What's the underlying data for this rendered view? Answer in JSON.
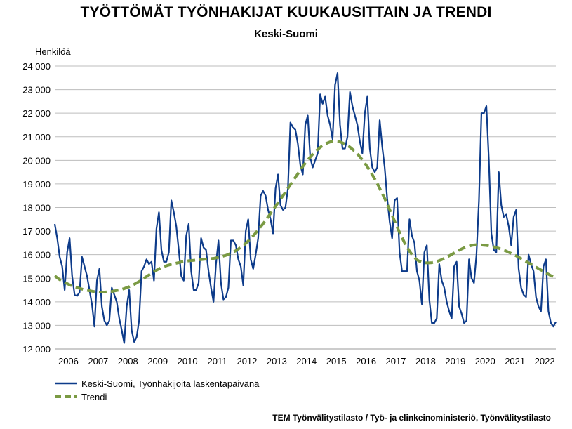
{
  "chart_data": {
    "type": "line",
    "title": "TYÖTTÖMÄT TYÖNHAKIJAT KUUKAUSITTAIN JA TRENDI",
    "subtitle": "Keski-Suomi",
    "ylabel": "Henkilöä",
    "ylim": [
      12000,
      24000
    ],
    "y_ticks": [
      "12 000",
      "13 000",
      "14 000",
      "15 000",
      "16 000",
      "17 000",
      "18 000",
      "19 000",
      "20 000",
      "21 000",
      "22 000",
      "23 000",
      "24 000"
    ],
    "y_tick_values": [
      12000,
      13000,
      14000,
      15000,
      16000,
      17000,
      18000,
      19000,
      20000,
      21000,
      22000,
      23000,
      24000
    ],
    "x_ticks": [
      "2006",
      "2007",
      "2008",
      "2009",
      "2010",
      "2011",
      "2012",
      "2013",
      "2014",
      "2015",
      "2016",
      "2017",
      "2018",
      "2019",
      "2020",
      "2021",
      "2022"
    ],
    "x_start": "2006-01",
    "x_end": "2022-06",
    "grid": true,
    "legend_position": "bottom-left",
    "source": "TEM Työnvälitystilasto / Työ- ja elinkeinoministeriö, Työnvälitystilasto",
    "colors": {
      "series": "#0d3b8a",
      "trend": "#7a9a43",
      "grid": "#bdbdbd"
    },
    "series": [
      {
        "name": "Keski-Suomi, Työnhakijoita laskentapäivänä",
        "style": "solid",
        "values": [
          17300,
          16700,
          15900,
          15500,
          14500,
          16100,
          16700,
          15100,
          14300,
          14250,
          14400,
          15900,
          15500,
          15100,
          14500,
          13900,
          12950,
          14900,
          15400,
          13800,
          13200,
          13000,
          13200,
          14600,
          14300,
          14000,
          13300,
          12800,
          12250,
          13800,
          14500,
          12800,
          12300,
          12500,
          13200,
          15300,
          15500,
          15800,
          15600,
          15700,
          14900,
          17100,
          17800,
          16200,
          15700,
          15700,
          16100,
          18300,
          17800,
          17200,
          16200,
          15100,
          14900,
          16800,
          17300,
          15300,
          14500,
          14500,
          14800,
          16700,
          16300,
          16200,
          15300,
          14600,
          14000,
          15600,
          16600,
          14800,
          14100,
          14200,
          14600,
          16600,
          16600,
          16400,
          15800,
          15500,
          14700,
          17000,
          17500,
          15800,
          15400,
          16000,
          16700,
          18500,
          18700,
          18500,
          17900,
          17500,
          16900,
          18800,
          19400,
          18100,
          17900,
          18000,
          18800,
          21600,
          21400,
          21300,
          20700,
          19800,
          19400,
          21500,
          21900,
          20100,
          19700,
          20000,
          20300,
          22800,
          22400,
          22700,
          21900,
          21500,
          20900,
          23200,
          23700,
          21500,
          20500,
          20500,
          21000,
          22900,
          22300,
          21900,
          21500,
          20800,
          20300,
          22000,
          22700,
          20500,
          19700,
          19500,
          19700,
          21700,
          20600,
          19700,
          18400,
          17400,
          16700,
          18300,
          18400,
          16100,
          15300,
          15300,
          15300,
          17500,
          16800,
          16500,
          15300,
          14900,
          13900,
          16100,
          16400,
          14100,
          13100,
          13100,
          13300,
          15600,
          14900,
          14600,
          14000,
          13600,
          13300,
          15500,
          15700,
          13800,
          13500,
          13100,
          13200,
          15800,
          15000,
          14800,
          16000,
          18300,
          22000,
          22000,
          22300,
          20000,
          16900,
          16200,
          16100,
          19500,
          18100,
          17600,
          17700,
          17200,
          16400,
          17600,
          17900,
          15400,
          14600,
          14300,
          14200,
          16000,
          15600,
          15300,
          14200,
          13800,
          13600,
          15500,
          15800,
          13600,
          13100,
          12950,
          13150
        ]
      },
      {
        "name": "Trendi",
        "style": "dashed",
        "values": [
          15100,
          15020,
          14940,
          14880,
          14820,
          14770,
          14720,
          14680,
          14640,
          14610,
          14570,
          14540,
          14510,
          14490,
          14470,
          14450,
          14430,
          14420,
          14410,
          14410,
          14410,
          14420,
          14430,
          14440,
          14460,
          14480,
          14500,
          14530,
          14560,
          14600,
          14640,
          14690,
          14740,
          14800,
          14860,
          14930,
          15000,
          15070,
          15140,
          15210,
          15280,
          15340,
          15400,
          15450,
          15490,
          15530,
          15560,
          15590,
          15620,
          15640,
          15660,
          15690,
          15710,
          15720,
          15740,
          15750,
          15760,
          15770,
          15780,
          15790,
          15800,
          15810,
          15820,
          15830,
          15840,
          15860,
          15880,
          15910,
          15940,
          15970,
          16010,
          16060,
          16110,
          16170,
          16240,
          16310,
          16390,
          16480,
          16580,
          16690,
          16800,
          16920,
          17050,
          17180,
          17310,
          17450,
          17600,
          17750,
          17900,
          18050,
          18200,
          18350,
          18500,
          18650,
          18810,
          18970,
          19120,
          19280,
          19430,
          19590,
          19740,
          19880,
          20010,
          20140,
          20260,
          20370,
          20460,
          20550,
          20620,
          20690,
          20740,
          20780,
          20800,
          20810,
          20800,
          20780,
          20740,
          20690,
          20630,
          20560,
          20470,
          20380,
          20270,
          20150,
          20020,
          19880,
          19730,
          19560,
          19390,
          19210,
          19020,
          18810,
          18600,
          18380,
          18150,
          17910,
          17670,
          17420,
          17180,
          16940,
          16720,
          16510,
          16320,
          16150,
          16000,
          15880,
          15780,
          15720,
          15680,
          15660,
          15650,
          15650,
          15660,
          15680,
          15710,
          15750,
          15790,
          15840,
          15890,
          15950,
          16010,
          16070,
          16130,
          16190,
          16240,
          16290,
          16330,
          16360,
          16390,
          16410,
          16420,
          16420,
          16410,
          16400,
          16390,
          16370,
          16350,
          16330,
          16300,
          16270,
          16230,
          16190,
          16150,
          16100,
          16050,
          16000,
          15950,
          15890,
          15830,
          15770,
          15710,
          15650,
          15590,
          15530,
          15470,
          15410,
          15350,
          15290,
          15230,
          15170,
          15110,
          15060,
          15020
        ]
      }
    ]
  }
}
